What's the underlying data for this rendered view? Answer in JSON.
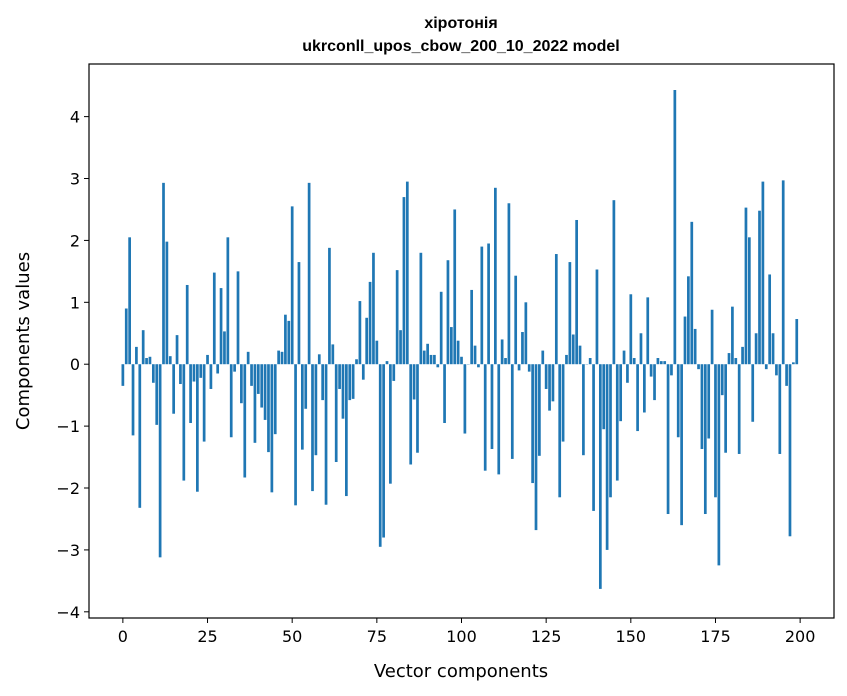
{
  "chart_data": {
    "type": "bar",
    "title": "хіротонія",
    "subtitle": "ukrconll_upos_cbow_200_10_2022 model",
    "xlabel": "Vector components",
    "ylabel": "Components values",
    "xlim": [
      -10,
      210
    ],
    "ylim": [
      -4.1,
      4.85
    ],
    "xticks": [
      0,
      25,
      50,
      75,
      100,
      125,
      150,
      175,
      200
    ],
    "yticks": [
      -4,
      -3,
      -2,
      -1,
      0,
      1,
      2,
      3,
      4
    ],
    "ytick_labels": [
      "−4",
      "−3",
      "−2",
      "−1",
      "0",
      "1",
      "2",
      "3",
      "4"
    ],
    "grid": false,
    "bar_color": "#1f77b4",
    "x": [
      0,
      1,
      2,
      3,
      4,
      5,
      6,
      7,
      8,
      9,
      10,
      11,
      12,
      13,
      14,
      15,
      16,
      17,
      18,
      19,
      20,
      21,
      22,
      23,
      24,
      25,
      26,
      27,
      28,
      29,
      30,
      31,
      32,
      33,
      34,
      35,
      36,
      37,
      38,
      39,
      40,
      41,
      42,
      43,
      44,
      45,
      46,
      47,
      48,
      49,
      50,
      51,
      52,
      53,
      54,
      55,
      56,
      57,
      58,
      59,
      60,
      61,
      62,
      63,
      64,
      65,
      66,
      67,
      68,
      69,
      70,
      71,
      72,
      73,
      74,
      75,
      76,
      77,
      78,
      79,
      80,
      81,
      82,
      83,
      84,
      85,
      86,
      87,
      88,
      89,
      90,
      91,
      92,
      93,
      94,
      95,
      96,
      97,
      98,
      99,
      100,
      101,
      102,
      103,
      104,
      105,
      106,
      107,
      108,
      109,
      110,
      111,
      112,
      113,
      114,
      115,
      116,
      117,
      118,
      119,
      120,
      121,
      122,
      123,
      124,
      125,
      126,
      127,
      128,
      129,
      130,
      131,
      132,
      133,
      134,
      135,
      136,
      137,
      138,
      139,
      140,
      141,
      142,
      143,
      144,
      145,
      146,
      147,
      148,
      149,
      150,
      151,
      152,
      153,
      154,
      155,
      156,
      157,
      158,
      159,
      160,
      161,
      162,
      163,
      164,
      165,
      166,
      167,
      168,
      169,
      170,
      171,
      172,
      173,
      174,
      175,
      176,
      177,
      178,
      179,
      180,
      181,
      182,
      183,
      184,
      185,
      186,
      187,
      188,
      189,
      190,
      191,
      192,
      193,
      194,
      195,
      196,
      197,
      198,
      199
    ],
    "values": [
      -0.35,
      0.9,
      2.05,
      -1.15,
      0.28,
      -2.32,
      0.55,
      0.1,
      0.12,
      -0.3,
      -0.98,
      -3.12,
      2.93,
      1.98,
      0.13,
      -0.8,
      0.47,
      -0.32,
      -1.88,
      1.28,
      -0.95,
      -0.28,
      -2.06,
      -0.22,
      -1.25,
      0.15,
      -0.4,
      1.48,
      -0.15,
      1.23,
      0.53,
      2.05,
      -1.18,
      -0.12,
      1.5,
      -0.63,
      -1.83,
      0.2,
      -0.35,
      -1.27,
      -0.48,
      -0.7,
      -0.9,
      -1.42,
      -2.07,
      -1.13,
      0.22,
      0.2,
      0.8,
      0.7,
      2.55,
      -2.28,
      1.65,
      -1.38,
      -0.72,
      2.93,
      -2.05,
      -1.47,
      0.16,
      -0.58,
      -2.27,
      1.88,
      0.32,
      -1.58,
      -0.4,
      -0.88,
      -2.13,
      -0.58,
      -0.56,
      0.08,
      1.02,
      -0.25,
      0.75,
      1.33,
      1.8,
      0.38,
      -2.95,
      -2.8,
      0.05,
      -1.93,
      -0.27,
      1.52,
      0.55,
      2.7,
      2.95,
      -1.62,
      -0.57,
      -1.43,
      1.8,
      0.22,
      0.33,
      0.15,
      0.15,
      -0.05,
      1.17,
      -0.95,
      1.68,
      0.6,
      2.5,
      0.38,
      0.12,
      -1.12,
      0.0,
      1.2,
      0.3,
      -0.05,
      1.9,
      -1.72,
      1.95,
      -1.37,
      2.85,
      -1.78,
      0.4,
      0.1,
      2.6,
      -1.53,
      1.43,
      -0.1,
      0.52,
      1.0,
      -0.12,
      -1.92,
      -2.68,
      -1.48,
      0.22,
      -0.4,
      -0.75,
      -0.6,
      1.78,
      -2.15,
      -1.25,
      0.15,
      1.65,
      0.48,
      2.33,
      0.3,
      -1.47,
      0.0,
      0.1,
      -2.37,
      1.53,
      -3.63,
      -1.05,
      -3.0,
      -2.15,
      2.65,
      -1.88,
      -0.92,
      0.22,
      -0.3,
      1.13,
      0.1,
      -1.08,
      0.5,
      -0.78,
      1.08,
      -0.2,
      -0.58,
      0.1,
      0.05,
      0.05,
      -2.42,
      -0.18,
      4.43,
      -1.18,
      -2.6,
      0.77,
      1.42,
      2.3,
      0.57,
      -0.08,
      -1.37,
      -2.42,
      -1.2,
      0.88,
      -2.15,
      -3.25,
      -0.5,
      -1.43,
      0.18,
      0.93,
      0.1,
      -1.45,
      0.28,
      2.53,
      2.05,
      -0.93,
      0.5,
      2.48,
      2.95,
      -0.08,
      1.45,
      0.5,
      -0.18,
      -1.45,
      2.97,
      -0.35,
      -2.78,
      0.03,
      0.73
    ]
  }
}
